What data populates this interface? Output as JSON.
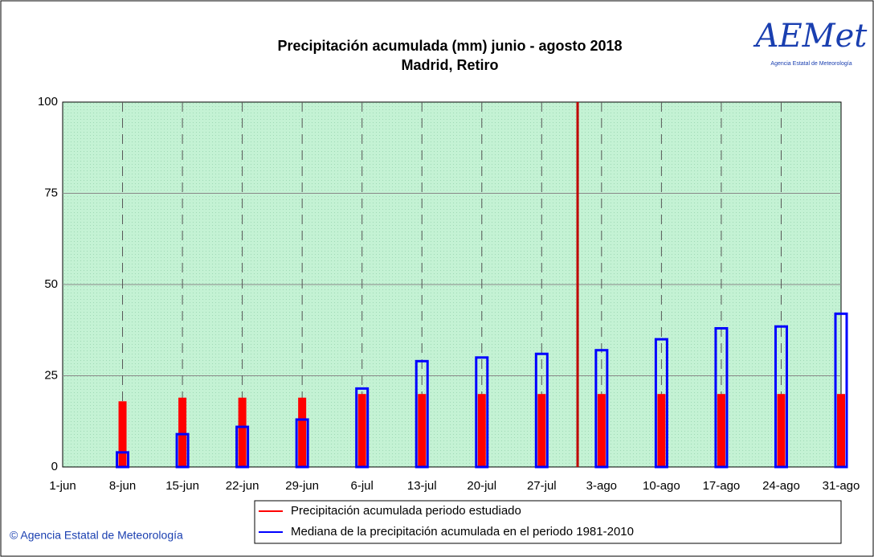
{
  "chart_data": {
    "type": "bar",
    "title": "Precipitación acumulada (mm) junio - agosto 2018",
    "subtitle": "Madrid, Retiro",
    "categories": [
      "1-jun",
      "8-jun",
      "15-jun",
      "22-jun",
      "29-jun",
      "6-jul",
      "13-jul",
      "20-jul",
      "27-jul",
      "3-ago",
      "10-ago",
      "17-ago",
      "24-ago",
      "31-ago"
    ],
    "series": [
      {
        "name": "Precipitación acumulada periodo estudiado",
        "color": "#ff0000",
        "values": [
          0,
          18,
          19,
          19,
          19,
          20,
          20,
          20,
          20,
          20,
          20,
          20,
          20,
          20
        ]
      },
      {
        "name": "Mediana de la precipitación acumulada en el periodo 1981-2010",
        "color": "#0000ff",
        "values": [
          0,
          4,
          9,
          11,
          13,
          21.5,
          29,
          30,
          31,
          32,
          35,
          38,
          38.5,
          42
        ]
      }
    ],
    "ylim": [
      0,
      100
    ],
    "yticks": [
      0,
      25,
      50,
      75,
      100
    ],
    "grid": true,
    "vline": {
      "x": 8.6,
      "color": "#c00000"
    },
    "logo": {
      "text": "AEMet",
      "caption": "Agencia Estatal de Meteorología"
    },
    "credit": "© Agencia Estatal de Meteorología"
  }
}
